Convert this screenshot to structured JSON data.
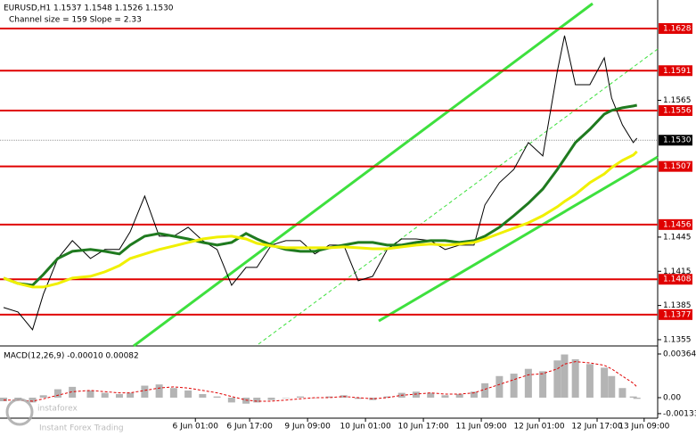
{
  "chart_data": [
    {
      "type": "line",
      "title": "EURUSD,H1  1.1537 1.1548 1.1526 1.1530",
      "subtitle": "Channel size = 159 Slope = 2.33",
      "x": [
        0,
        4,
        8,
        11,
        15,
        19,
        24,
        28,
        32,
        35,
        39,
        43,
        47,
        51,
        55,
        59,
        63,
        67,
        70,
        74,
        78,
        82,
        86,
        90,
        94,
        98,
        102,
        106,
        110,
        114,
        118,
        122,
        126,
        130,
        133,
        137,
        141,
        145,
        149,
        153,
        155,
        158,
        162,
        166,
        168,
        171,
        174,
        175
      ],
      "series": [
        {
          "name": "EURUSD",
          "color": "#000000",
          "width": 1,
          "values": [
            1.13832,
            1.13793,
            1.13637,
            1.1395,
            1.14262,
            1.14419,
            1.14262,
            1.14341,
            1.14341,
            1.14497,
            1.1481,
            1.14458,
            1.14458,
            1.14536,
            1.14419,
            1.14341,
            1.14028,
            1.14184,
            1.14184,
            1.1438,
            1.14419,
            1.14419,
            1.14302,
            1.1438,
            1.1438,
            1.14067,
            1.14106,
            1.14341,
            1.14434,
            1.14434,
            1.14419,
            1.14341,
            1.1438,
            1.1438,
            1.14732,
            1.14927,
            1.15044,
            1.15279,
            1.15162,
            1.15905,
            1.16217,
            1.15787,
            1.15787,
            1.16022,
            1.1567,
            1.15435,
            1.15279,
            1.15318
          ]
        },
        {
          "name": "MA green",
          "color": "#1f7a1f",
          "width": 3,
          "values": [
            1.1409,
            1.14043,
            1.14028,
            1.14122,
            1.14262,
            1.14325,
            1.14341,
            1.14325,
            1.14302,
            1.1438,
            1.14458,
            1.14481,
            1.14458,
            1.14434,
            1.14403,
            1.1438,
            1.14403,
            1.14481,
            1.14434,
            1.1438,
            1.14341,
            1.14325,
            1.14325,
            1.14356,
            1.1438,
            1.14403,
            1.14403,
            1.1438,
            1.1438,
            1.14403,
            1.14419,
            1.14419,
            1.14403,
            1.14419,
            1.14458,
            1.14536,
            1.14638,
            1.14747,
            1.14872,
            1.15044,
            1.15138,
            1.15279,
            1.15396,
            1.15529,
            1.15561,
            1.15584,
            1.156,
            1.15607
          ]
        },
        {
          "name": "MA yellow",
          "color": "#f0f000",
          "width": 3,
          "values": [
            1.1409,
            1.14043,
            1.14012,
            1.14012,
            1.14043,
            1.1409,
            1.14106,
            1.14145,
            1.142,
            1.14262,
            1.14302,
            1.14341,
            1.14372,
            1.14403,
            1.14434,
            1.1445,
            1.14458,
            1.14434,
            1.14395,
            1.14372,
            1.14356,
            1.14356,
            1.14356,
            1.14356,
            1.14364,
            1.14356,
            1.14348,
            1.14348,
            1.14364,
            1.1438,
            1.14388,
            1.1438,
            1.14388,
            1.14403,
            1.14434,
            1.14481,
            1.14528,
            1.14575,
            1.14638,
            1.14716,
            1.14763,
            1.14825,
            1.14927,
            1.15005,
            1.1506,
            1.15123,
            1.1517,
            1.15201
          ]
        }
      ],
      "levels": [
        1.1628,
        1.1591,
        1.1556,
        1.1507,
        1.1456,
        1.1408,
        1.1377
      ],
      "level_color": "#e00000",
      "current": {
        "value": 1.153,
        "label": "1.1530"
      },
      "xlim": [
        0,
        180
      ],
      "ylim": [
        1.13495,
        1.1653
      ],
      "xticks": [
        {
          "value": 53,
          "label": "6 Jun 01:00"
        },
        {
          "value": 68,
          "label": "6 Jun 17:00"
        },
        {
          "value": 84,
          "label": "9 Jun 09:00"
        },
        {
          "value": 100,
          "label": "10 Jun 01:00"
        },
        {
          "value": 116,
          "label": "10 Jun 17:00"
        },
        {
          "value": 132,
          "label": "11 Jun 09:00"
        },
        {
          "value": 148,
          "label": "12 Jun 01:00"
        },
        {
          "value": 164,
          "label": "12 Jun 17:00"
        },
        {
          "value": 177,
          "label": "13 Jun 09:00"
        }
      ],
      "yticks": [
        1.1565,
        1.1445,
        1.1415,
        1.1385,
        1.1355
      ],
      "grid": false
    },
    {
      "type": "bar",
      "title": "MACD(12,26,9) -0.00010 0.00082",
      "x": [
        0,
        4,
        8,
        11,
        15,
        19,
        24,
        28,
        32,
        35,
        39,
        43,
        47,
        51,
        55,
        59,
        63,
        67,
        70,
        74,
        78,
        82,
        86,
        90,
        94,
        98,
        102,
        106,
        110,
        114,
        118,
        122,
        126,
        130,
        133,
        137,
        141,
        145,
        149,
        153,
        155,
        158,
        162,
        166,
        168,
        171,
        174,
        175
      ],
      "series": [
        {
          "name": "MACD",
          "color": "#b4b4b4",
          "values": [
            -0.0003,
            -0.0002,
            -0.0004,
            0.0002,
            0.0007,
            0.0009,
            0.0006,
            0.0004,
            0.0003,
            0.0004,
            0.001,
            0.0011,
            0.0008,
            0.0006,
            0.0003,
            0.0001,
            -0.0004,
            -0.0005,
            -0.0004,
            -0.0002,
            0,
            0.0001,
            0,
            0.0001,
            0.0002,
            -0.0001,
            -0.0002,
            0.0001,
            0.0004,
            0.0005,
            0.0004,
            0.0002,
            0.0003,
            0.0005,
            0.0012,
            0.0018,
            0.002,
            0.0024,
            0.0022,
            0.0031,
            0.0036,
            0.0032,
            0.0028,
            0.0025,
            0.0018,
            0.0008,
            0.0001,
            -0.0001
          ]
        },
        {
          "name": "Signal",
          "color": "#e00000",
          "values": [
            -0.0002,
            -0.0002,
            -0.0003,
            -0.0001,
            0.0002,
            0.0005,
            0.0006,
            0.0005,
            0.0004,
            0.0004,
            0.0006,
            0.0008,
            0.0009,
            0.0008,
            0.0006,
            0.0004,
            0.0001,
            -0.0002,
            -0.0003,
            -0.0003,
            -0.0002,
            -0.0001,
            0,
            0,
            0.0001,
            0,
            -0.0001,
            0,
            0.0002,
            0.0003,
            0.0004,
            0.0003,
            0.0003,
            0.0004,
            0.0007,
            0.0011,
            0.0015,
            0.0019,
            0.002,
            0.0024,
            0.0028,
            0.003,
            0.0029,
            0.0027,
            0.0024,
            0.0018,
            0.0012,
            0.0009
          ]
        }
      ],
      "xlim": [
        0,
        180
      ],
      "ylim": [
        -0.00156,
        0.00416
      ],
      "yticks": [
        0.00364,
        {
          "value": 0,
          "label": "0.00"
        },
        -0.00133
      ]
    }
  ],
  "watermark": {
    "brand": "instaforex",
    "tagline": "Instant Forex Trading"
  }
}
